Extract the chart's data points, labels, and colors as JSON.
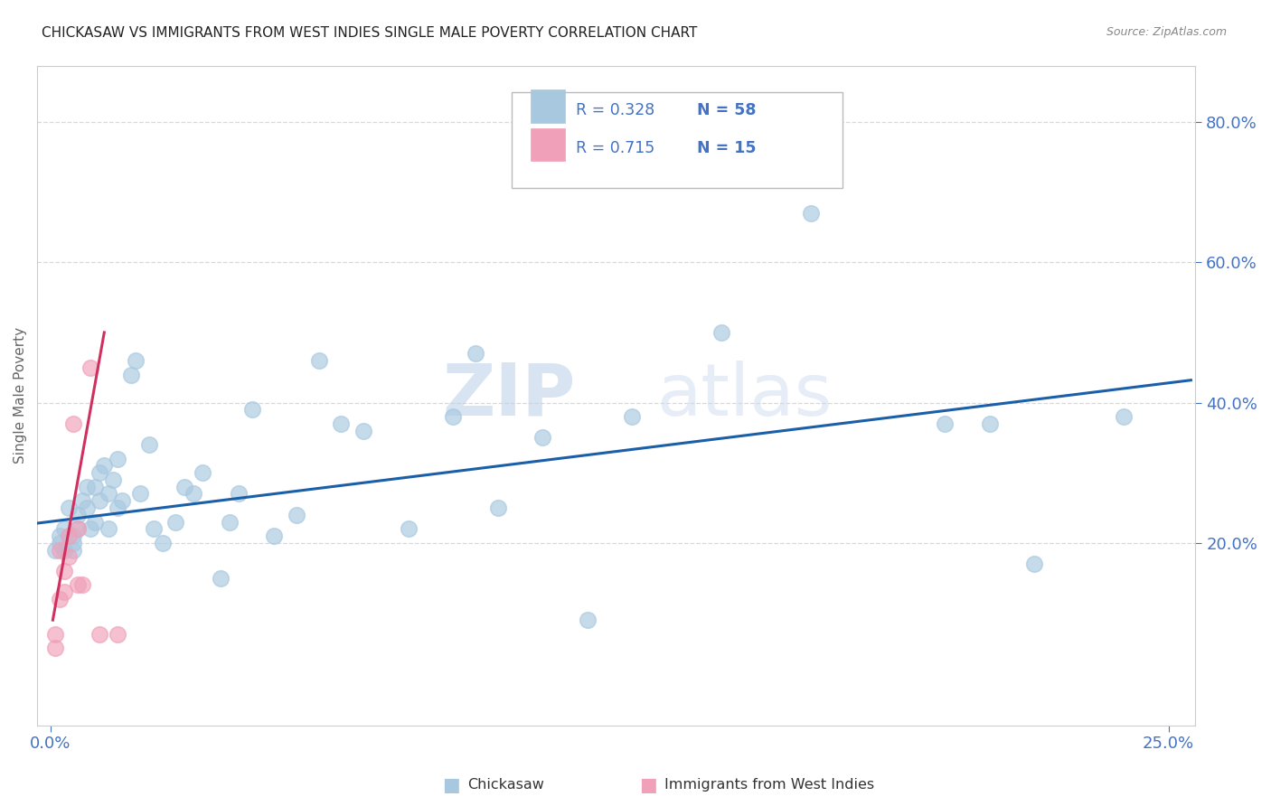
{
  "title": "CHICKASAW VS IMMIGRANTS FROM WEST INDIES SINGLE MALE POVERTY CORRELATION CHART",
  "source": "Source: ZipAtlas.com",
  "ylabel_label": "Single Male Poverty",
  "watermark_zip": "ZIP",
  "watermark_atlas": "atlas",
  "legend_entries": [
    {
      "label": "Chickasaw",
      "R": "0.328",
      "N": "58"
    },
    {
      "label": "Immigrants from West Indies",
      "R": "0.715",
      "N": "15"
    }
  ],
  "chickasaw_x": [
    0.001,
    0.002,
    0.002,
    0.003,
    0.003,
    0.004,
    0.005,
    0.005,
    0.005,
    0.006,
    0.006,
    0.007,
    0.008,
    0.008,
    0.009,
    0.01,
    0.01,
    0.011,
    0.011,
    0.012,
    0.013,
    0.013,
    0.014,
    0.015,
    0.015,
    0.016,
    0.018,
    0.019,
    0.02,
    0.022,
    0.023,
    0.025,
    0.028,
    0.03,
    0.032,
    0.034,
    0.038,
    0.04,
    0.042,
    0.045,
    0.05,
    0.055,
    0.06,
    0.065,
    0.07,
    0.08,
    0.09,
    0.095,
    0.1,
    0.11,
    0.12,
    0.13,
    0.15,
    0.17,
    0.2,
    0.21,
    0.22,
    0.24
  ],
  "chickasaw_y": [
    0.19,
    0.2,
    0.21,
    0.19,
    0.22,
    0.25,
    0.2,
    0.21,
    0.19,
    0.22,
    0.24,
    0.26,
    0.28,
    0.25,
    0.22,
    0.23,
    0.28,
    0.26,
    0.3,
    0.31,
    0.22,
    0.27,
    0.29,
    0.32,
    0.25,
    0.26,
    0.44,
    0.46,
    0.27,
    0.34,
    0.22,
    0.2,
    0.23,
    0.28,
    0.27,
    0.3,
    0.15,
    0.23,
    0.27,
    0.39,
    0.21,
    0.24,
    0.46,
    0.37,
    0.36,
    0.22,
    0.38,
    0.47,
    0.25,
    0.35,
    0.09,
    0.38,
    0.5,
    0.67,
    0.37,
    0.37,
    0.17,
    0.38
  ],
  "west_indies_x": [
    0.001,
    0.001,
    0.002,
    0.002,
    0.003,
    0.003,
    0.004,
    0.004,
    0.005,
    0.006,
    0.006,
    0.007,
    0.009,
    0.011,
    0.015
  ],
  "west_indies_y": [
    0.05,
    0.07,
    0.19,
    0.12,
    0.13,
    0.16,
    0.18,
    0.21,
    0.37,
    0.22,
    0.14,
    0.14,
    0.45,
    0.07,
    0.07
  ],
  "xlim": [
    -0.003,
    0.256
  ],
  "ylim": [
    -0.06,
    0.88
  ],
  "blue_line_x": [
    -0.003,
    0.255
  ],
  "blue_line_y": [
    0.228,
    0.432
  ],
  "pink_line_x": [
    0.0005,
    0.012
  ],
  "pink_line_y": [
    0.09,
    0.5
  ],
  "scatter_color_blue": "#A8C8E0",
  "scatter_color_pink": "#F0A0B8",
  "line_color_blue": "#1A5FA8",
  "line_color_pink": "#D03060",
  "grid_color": "#d8d8d8",
  "background_color": "#ffffff",
  "title_fontsize": 11,
  "tick_color": "#4472c4",
  "ylabel_color": "#666666",
  "source_color": "#888888"
}
